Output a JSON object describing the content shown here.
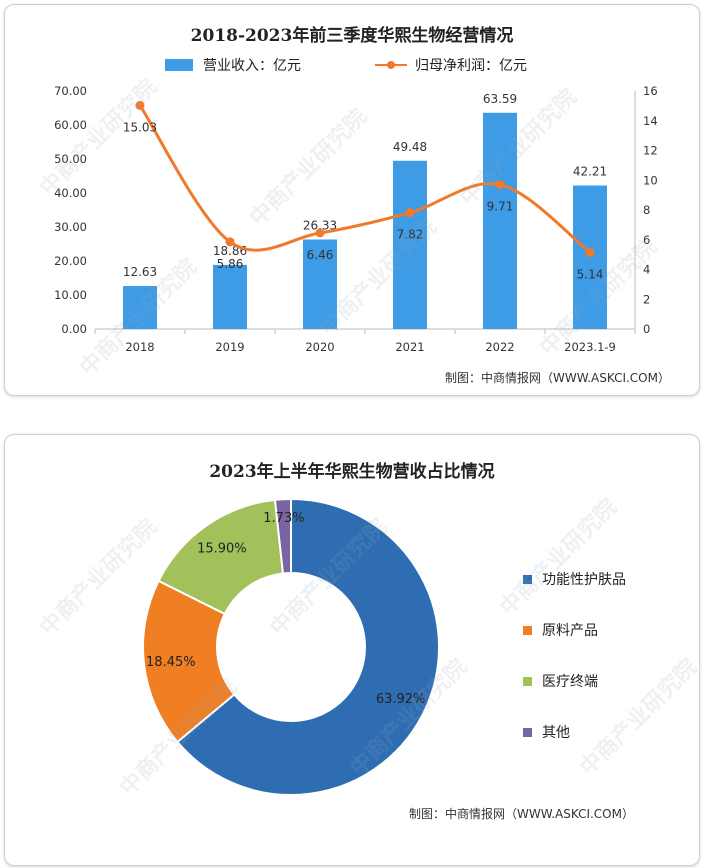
{
  "watermark_text": "中商产业研究院",
  "chart_data": [
    {
      "type": "bar",
      "title": "2018-2023年前三季度华熙生物经营情况",
      "categories": [
        "2018",
        "2019",
        "2020",
        "2021",
        "2022",
        "2023.1-9"
      ],
      "series": [
        {
          "name": "营业收入：亿元",
          "kind": "bar",
          "axis": "left",
          "color": "#3e9be6",
          "values": [
            12.63,
            18.86,
            26.33,
            49.48,
            63.59,
            42.21
          ],
          "labels": [
            "12.63",
            "18.86",
            "26.33",
            "49.48",
            "63.59",
            "42.21"
          ]
        },
        {
          "name": "归母净利润：亿元",
          "kind": "line",
          "axis": "right",
          "color": "#f07a2a",
          "values": [
            15.03,
            5.86,
            6.46,
            7.82,
            9.71,
            5.14
          ],
          "labels": [
            "15.03",
            "5.86",
            "6.46",
            "7.82",
            "9.71",
            "5.14"
          ]
        }
      ],
      "y_left": {
        "min": 0,
        "max": 70,
        "ticks": [
          "0.00",
          "10.00",
          "20.00",
          "30.00",
          "40.00",
          "50.00",
          "60.00",
          "70.00"
        ]
      },
      "y_right": {
        "min": 0,
        "max": 16,
        "ticks": [
          "0",
          "2",
          "4",
          "6",
          "8",
          "10",
          "12",
          "14",
          "16"
        ]
      },
      "legend": "top",
      "source": "制图：中商情报网（WWW.ASKCI.COM）"
    },
    {
      "type": "pie",
      "title": "2023年上半年华熙生物营收占比情况",
      "slices": [
        {
          "label": "功能性护肤品",
          "value": 63.92,
          "text": "63.92%",
          "color": "#2f6db3"
        },
        {
          "label": "原料产品",
          "value": 18.45,
          "text": "18.45%",
          "color": "#f07f23"
        },
        {
          "label": "医疗终端",
          "value": 15.9,
          "text": "15.90%",
          "color": "#a3c15b"
        },
        {
          "label": "其他",
          "value": 1.73,
          "text": "1.73%",
          "color": "#7b64a4"
        }
      ],
      "donut": true,
      "legend": "right",
      "source": "制图：中商情报网（WWW.ASKCI.COM）"
    }
  ]
}
